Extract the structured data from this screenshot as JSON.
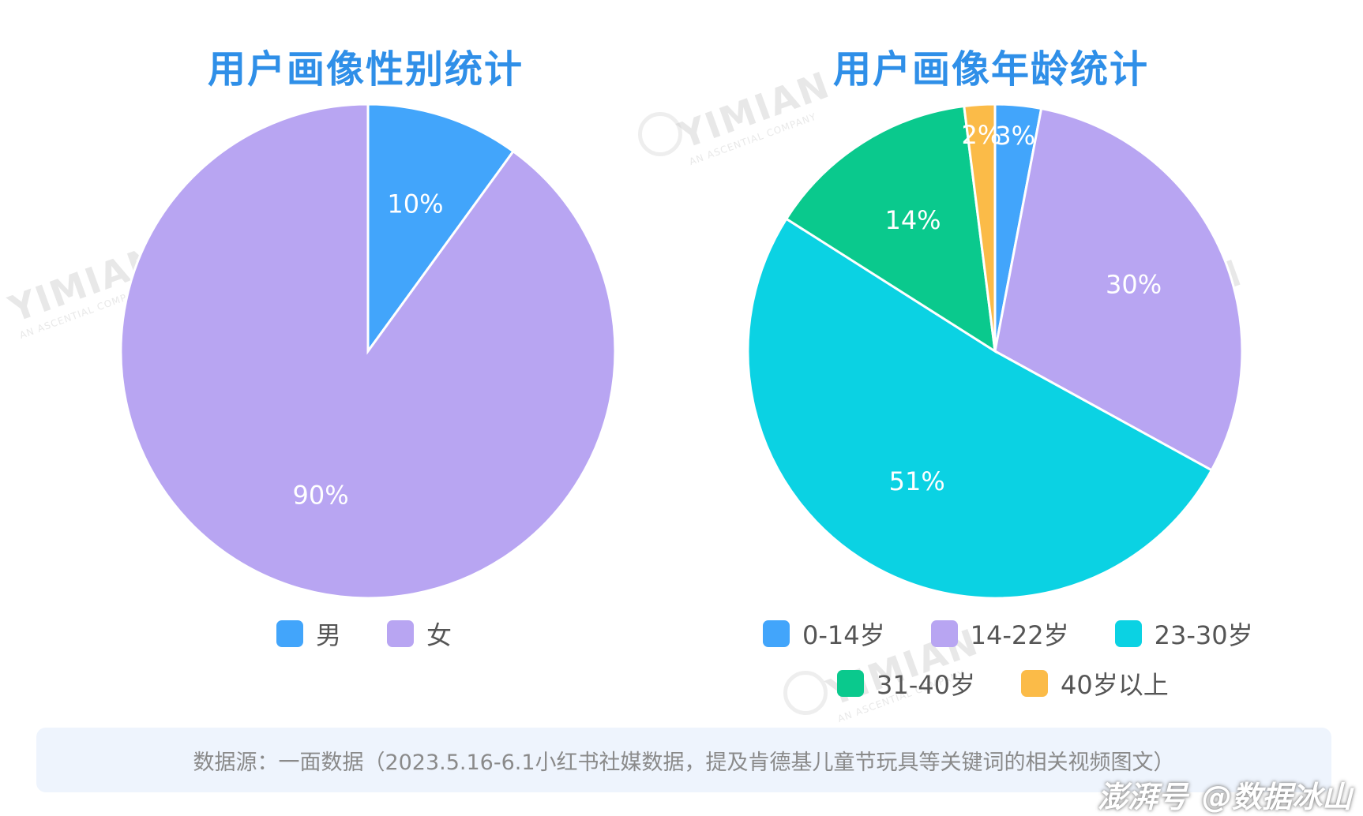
{
  "chart_data": [
    {
      "type": "pie",
      "title": "用户画像性别统计",
      "categories": [
        "男",
        "女"
      ],
      "values": [
        10,
        90
      ],
      "labels": [
        "10%",
        "90%"
      ],
      "colors": [
        "#42a5fb",
        "#b8a5f2"
      ],
      "legend_position": "bottom"
    },
    {
      "type": "pie",
      "title": "用户画像年龄统计",
      "categories": [
        "0-14岁",
        "14-22岁",
        "23-30岁",
        "31-40岁",
        "40岁以上"
      ],
      "values": [
        3,
        30,
        51,
        14,
        2
      ],
      "labels": [
        "3%",
        "30%",
        "51%",
        "14%",
        "2%"
      ],
      "colors": [
        "#42a5fb",
        "#b8a5f2",
        "#0bd2e3",
        "#0ac98d",
        "#fbbb48"
      ],
      "legend_position": "bottom"
    }
  ],
  "source_text": "数据源：一面数据（2023.5.16-6.1小红书社媒数据，提及肯德基儿童节玩具等关键词的相关视频图文）",
  "watermark": {
    "brand": "YIMIAN",
    "tagline": "AN ASCENTIAL COMPANY"
  },
  "footer": {
    "platform": "澎湃号",
    "account": "@数据冰山"
  }
}
